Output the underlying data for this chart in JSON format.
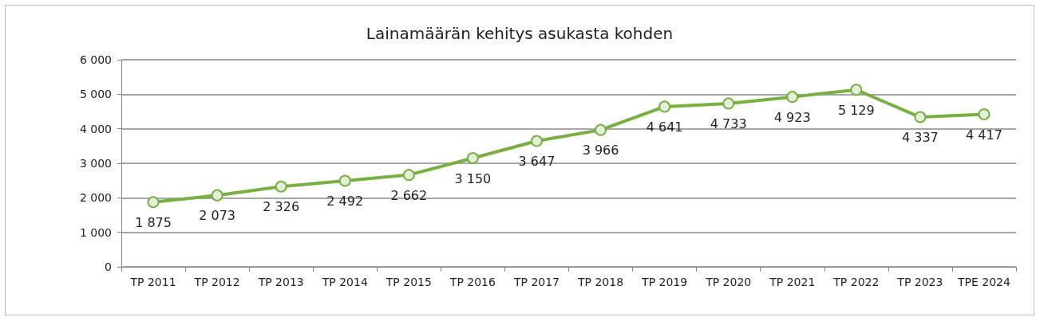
{
  "chart_data": {
    "type": "line",
    "title": "Lainamäärän kehitys asukasta kohden",
    "categories": [
      "TP 2011",
      "TP 2012",
      "TP 2013",
      "TP 2014",
      "TP 2015",
      "TP 2016",
      "TP 2017",
      "TP 2018",
      "TP 2019",
      "TP 2020",
      "TP 2021",
      "TP 2022",
      "TP 2023",
      "TPE 2024"
    ],
    "series": [
      {
        "color": "#77b041",
        "values": [
          1875,
          2073,
          2326,
          2492,
          2662,
          3150,
          3647,
          3966,
          4641,
          4733,
          4923,
          5129,
          4337,
          4417
        ],
        "value_labels": [
          "1 875",
          "2 073",
          "2 326",
          "2 492",
          "2 662",
          "3 150",
          "3 647",
          "3 966",
          "4 641",
          "4 733",
          "4 923",
          "5 129",
          "4 337",
          "4 417"
        ]
      }
    ],
    "ylim": [
      0,
      6000
    ],
    "yticks": [
      0,
      {
        "value": 1000,
        "label": "1 000"
      },
      {
        "value": 2000,
        "label": "2 000"
      },
      {
        "value": 3000,
        "label": "3 000"
      },
      {
        "value": 4000,
        "label": "4 000"
      },
      {
        "value": 5000,
        "label": "5 000"
      },
      {
        "value": 6000,
        "label": "6 000"
      }
    ],
    "grid": "y",
    "marker": "circle",
    "line_style": "solid"
  }
}
